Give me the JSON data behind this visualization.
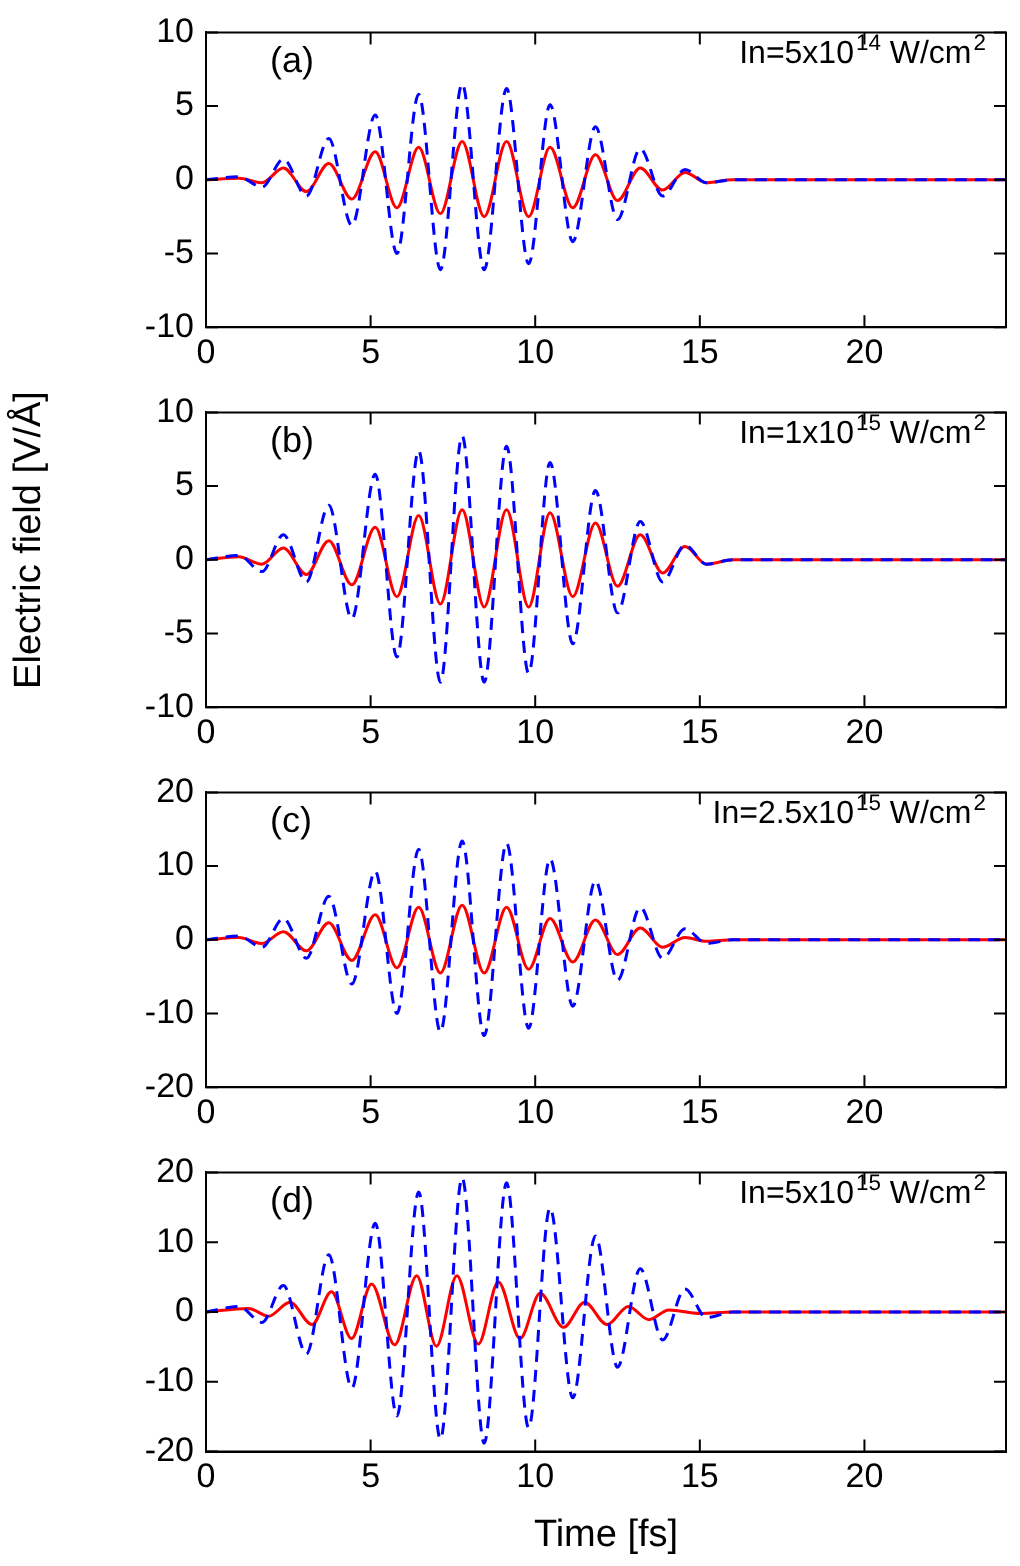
{
  "chart_data": [
    {
      "type": "line",
      "annotations": [
        "(a)",
        "In=5x10$^{14}$ W/cm$^{2}$"
      ],
      "x": [
        0,
        1.0,
        1.7,
        2.35,
        3.05,
        3.73,
        4.43,
        5.14,
        5.8,
        6.46,
        7.12,
        7.78,
        8.45,
        9.13,
        9.8,
        10.45,
        11.14,
        11.83,
        12.5,
        13.19,
        13.87,
        14.55,
        15.2,
        16,
        24.3
      ],
      "series": [
        {
          "color": "#0000ff",
          "line_style": "dashed",
          "values": [
            0,
            0.2,
            -0.5,
            1.4,
            -1.1,
            2.8,
            -3.1,
            4.4,
            -5,
            5.8,
            -6.1,
            6.5,
            -6.1,
            6.2,
            -5.7,
            5.1,
            -4.2,
            3.6,
            -2.7,
            2.1,
            -1.1,
            0.7,
            -0.2,
            0,
            0
          ]
        },
        {
          "color": "#ff0000",
          "line_style": "solid",
          "values": [
            0,
            0.1,
            -0.2,
            0.8,
            -0.8,
            1.1,
            -1.3,
            1.9,
            -1.9,
            2.2,
            -2.3,
            2.6,
            -2.5,
            2.6,
            -2.5,
            2.2,
            -1.9,
            1.7,
            -1.4,
            0.8,
            -0.7,
            0.5,
            -0.2,
            0,
            0
          ]
        }
      ],
      "xlim": [
        0,
        24.3
      ],
      "xticks": [
        0,
        5,
        10,
        15,
        20
      ],
      "ylim": [
        -10,
        10
      ],
      "yticks": [
        -10,
        -5,
        0,
        5,
        10
      ],
      "grid": false,
      "legend": false,
      "marker": "none"
    },
    {
      "type": "line",
      "ylabel": "Electric field [V/Å]",
      "annotations": [
        "(b)",
        "In=1x10$^{15}$ W/cm$^{2}$"
      ],
      "x": [
        0,
        1.0,
        1.7,
        2.35,
        3.05,
        3.73,
        4.43,
        5.14,
        5.8,
        6.46,
        7.12,
        7.78,
        8.45,
        9.13,
        9.8,
        10.45,
        11.14,
        11.83,
        12.5,
        13.19,
        13.87,
        14.55,
        15.2,
        16,
        24.3
      ],
      "series": [
        {
          "color": "#0000ff",
          "line_style": "dashed",
          "values": [
            0,
            0.3,
            -0.8,
            1.7,
            -1.5,
            3.7,
            -4,
            5.8,
            -6.6,
            7.4,
            -8.3,
            8.4,
            -8.3,
            7.7,
            -7.7,
            6.6,
            -5.7,
            4.7,
            -3.6,
            2.6,
            -1.5,
            1.0,
            -0.3,
            0,
            0
          ]
        },
        {
          "color": "#ff0000",
          "line_style": "solid",
          "values": [
            0,
            0.2,
            -0.3,
            0.8,
            -1,
            1.3,
            -1.7,
            2.2,
            -2.5,
            3.0,
            -3,
            3.4,
            -3.2,
            3.4,
            -3.2,
            3.2,
            -2.5,
            2.5,
            -1.8,
            1.7,
            -0.9,
            0.9,
            -0.3,
            0,
            0
          ]
        }
      ],
      "xlim": [
        0,
        24.3
      ],
      "xticks": [
        0,
        5,
        10,
        15,
        20
      ],
      "ylim": [
        -10,
        10
      ],
      "yticks": [
        -10,
        -5,
        0,
        5,
        10
      ],
      "grid": false,
      "legend": false,
      "marker": "none"
    },
    {
      "type": "line",
      "annotations": [
        "(c)",
        "In=2.5x10$^{15}$ W/cm$^{2}$"
      ],
      "x": [
        0,
        1.0,
        1.7,
        2.35,
        3.05,
        3.73,
        4.43,
        5.14,
        5.8,
        6.46,
        7.12,
        7.78,
        8.45,
        9.13,
        9.8,
        10.45,
        11.14,
        11.83,
        12.5,
        13.19,
        13.87,
        14.55,
        15.2,
        16,
        24.3
      ],
      "series": [
        {
          "color": "#0000ff",
          "line_style": "dashed",
          "values": [
            0,
            0.5,
            -1,
            2.9,
            -2.5,
            5.9,
            -6,
            9.3,
            -10,
            12.3,
            -12.5,
            13.4,
            -13,
            13.1,
            -12,
            11,
            -9,
            8,
            -5.5,
            4.4,
            -2.5,
            1.5,
            -0.5,
            0,
            0
          ]
        },
        {
          "color": "#ff0000",
          "line_style": "solid",
          "values": [
            0,
            0.3,
            -0.5,
            1.1,
            -1.5,
            2.3,
            -2.8,
            3.4,
            -3.8,
            4.4,
            -4.5,
            4.7,
            -4.5,
            4.4,
            -4,
            2.9,
            -3,
            2.7,
            -2,
            1.6,
            -1,
            0.3,
            -0.2,
            0,
            0
          ]
        }
      ],
      "xlim": [
        0,
        24.3
      ],
      "xticks": [
        0,
        5,
        10,
        15,
        20
      ],
      "ylim": [
        -20,
        20
      ],
      "yticks": [
        -20,
        -10,
        0,
        10,
        20
      ],
      "grid": false,
      "legend": false,
      "marker": "none"
    },
    {
      "type": "line",
      "xlabel": "Time [fs]",
      "annotations": [
        "(d)",
        "In=5x10$^{15}$ W/cm$^{2}$"
      ],
      "x": [
        0,
        1.0,
        1.7,
        2.35,
        3.05,
        3.73,
        4.43,
        5.14,
        5.8,
        6.46,
        7.12,
        7.78,
        8.45,
        9.13,
        9.8,
        10.45,
        11.14,
        11.83,
        12.5,
        13.19,
        13.87,
        14.55,
        15.2,
        16,
        24.3
      ],
      "series": [
        {
          "color": "#0000ff",
          "line_style": "dashed",
          "values": [
            0,
            0.8,
            -1.5,
            3.8,
            -6,
            8.2,
            -10.9,
            12.7,
            -14.9,
            17.2,
            -18.2,
            19.2,
            -18.8,
            18.5,
            -16.6,
            14.9,
            -12.3,
            10.9,
            -7.9,
            6.2,
            -4,
            3.3,
            -0.8,
            0,
            0
          ]
        },
        {
          "color": "#ff0000",
          "line_style": "solid",
          "x": [
            0,
            1.3,
            1.9,
            2.55,
            3.22,
            3.81,
            4.42,
            5.03,
            5.73,
            6.4,
            7.0,
            7.62,
            8.27,
            8.88,
            9.54,
            10.15,
            10.86,
            11.5,
            12.18,
            12.83,
            13.45,
            14.06,
            15,
            16,
            24.3
          ],
          "values": [
            0,
            0.5,
            -0.6,
            1.4,
            -1.8,
            2.9,
            -3.8,
            4,
            -4.7,
            5.2,
            -4.9,
            5.2,
            -4.6,
            4.3,
            -3.8,
            2.7,
            -2.2,
            1.4,
            -1.8,
            0.8,
            -1.1,
            0.3,
            -0.2,
            0,
            0
          ]
        }
      ],
      "xlim": [
        0,
        24.3
      ],
      "xticks": [
        0,
        5,
        10,
        15,
        20
      ],
      "ylim": [
        -20,
        20
      ],
      "yticks": [
        -20,
        -10,
        0,
        10,
        20
      ],
      "grid": false,
      "legend": false,
      "marker": "none"
    }
  ]
}
